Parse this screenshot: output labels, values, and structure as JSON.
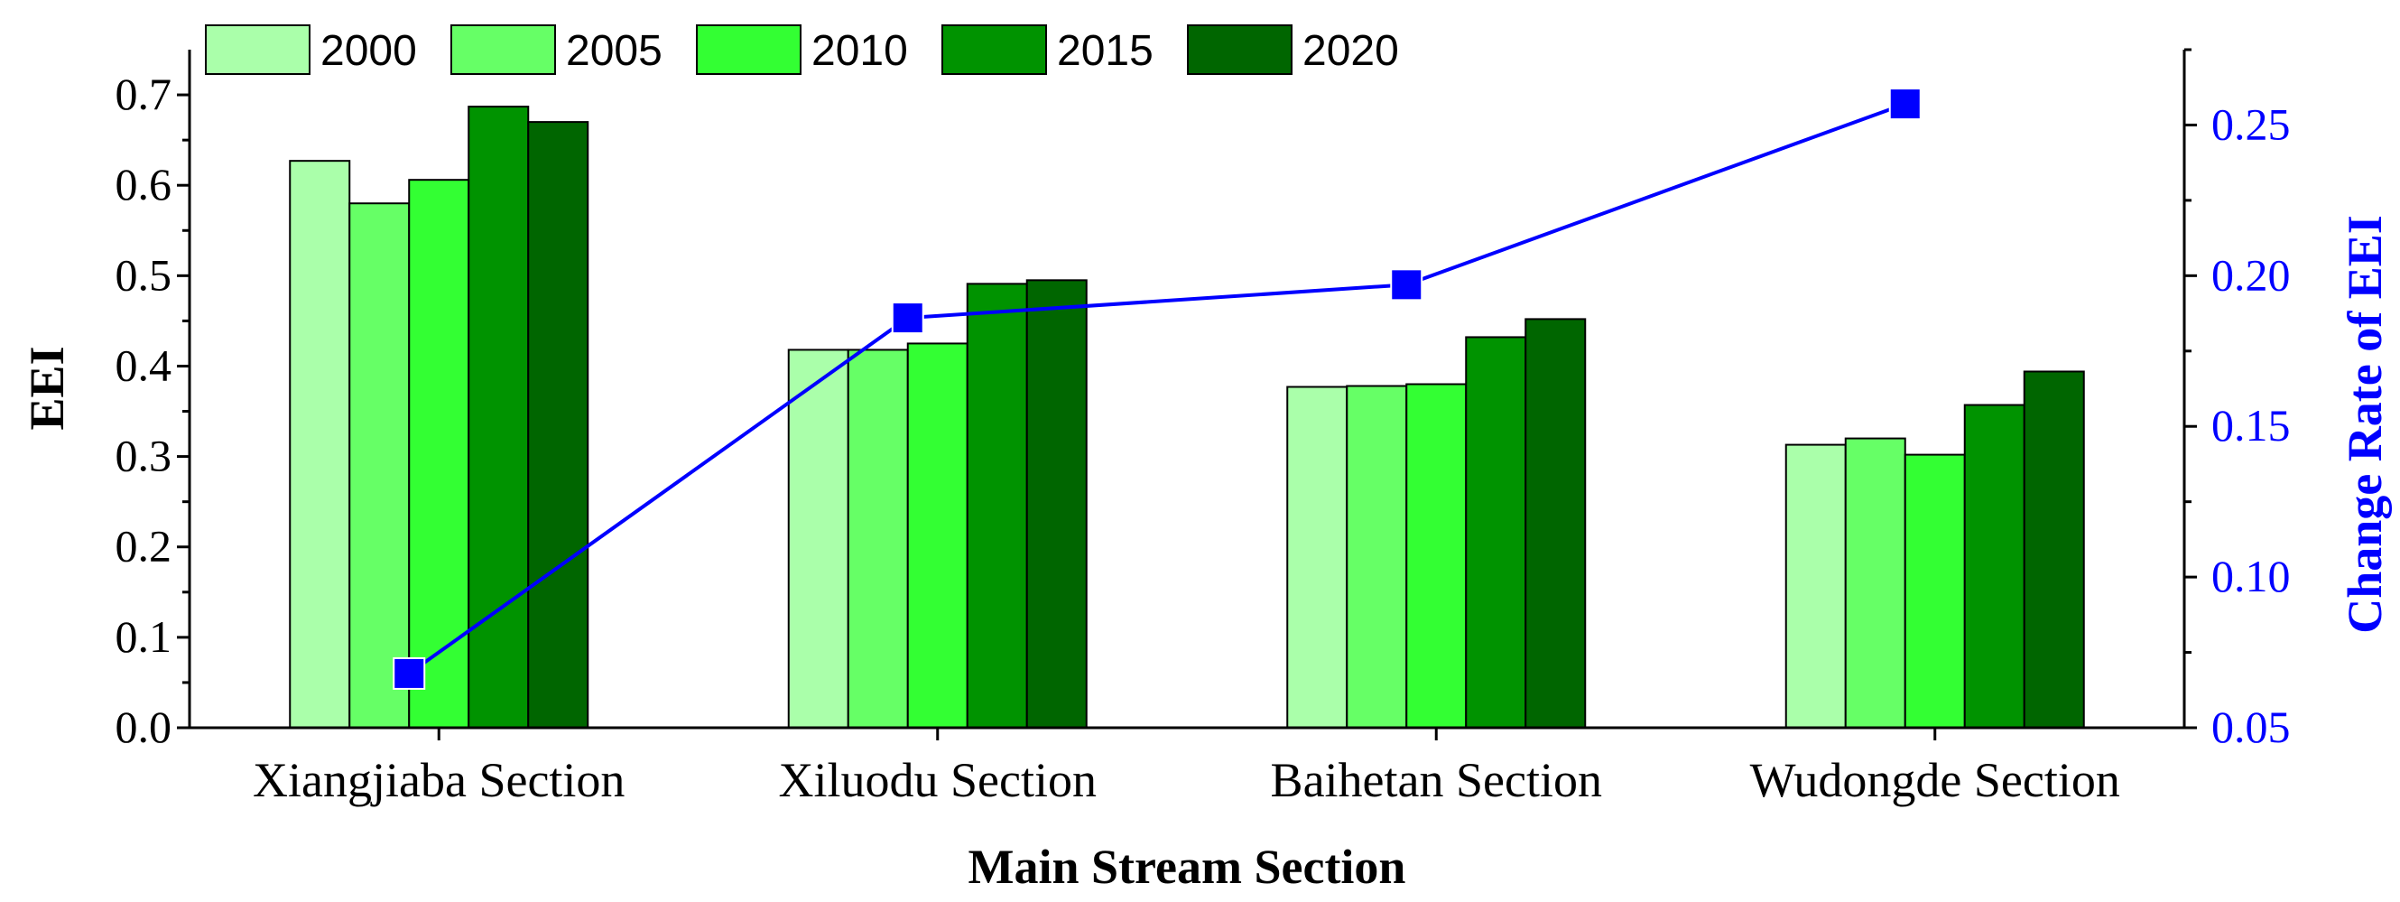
{
  "chart_data": {
    "type": "bar",
    "categories": [
      "Xiangjiaba Section",
      "Xiluodu Section",
      "Baihetan Section",
      "Wudongde Section"
    ],
    "series": [
      {
        "name": "2000",
        "values": [
          0.627,
          0.418,
          0.377,
          0.313
        ],
        "color": "#aaffaa"
      },
      {
        "name": "2005",
        "values": [
          0.58,
          0.418,
          0.378,
          0.32
        ],
        "color": "#66ff66"
      },
      {
        "name": "2010",
        "values": [
          0.606,
          0.425,
          0.38,
          0.302
        ],
        "color": "#33ff33"
      },
      {
        "name": "2015",
        "values": [
          0.687,
          0.491,
          0.432,
          0.357
        ],
        "color": "#009300"
      },
      {
        "name": "2020",
        "values": [
          0.67,
          0.495,
          0.452,
          0.394
        ],
        "color": "#006600"
      }
    ],
    "line_series": {
      "name": "Change Rate of EEI",
      "values": [
        0.068,
        0.186,
        0.197,
        0.257
      ],
      "color": "#0000ff",
      "marker": "square",
      "axis": "right"
    },
    "xlabel": "Main Stream Section",
    "ylabel": "EEI",
    "ylabel_right": "Change Rate of EEI",
    "ylim": [
      0.0,
      0.75
    ],
    "ylim_right": [
      0.05,
      0.275
    ],
    "yticks": [
      "0.0",
      "0.1",
      "0.2",
      "0.3",
      "0.4",
      "0.5",
      "0.6",
      "0.7"
    ],
    "yticks_values": [
      0.0,
      0.1,
      0.2,
      0.3,
      0.4,
      0.5,
      0.6,
      0.7
    ],
    "yticks_right": [
      "0.05",
      "0.10",
      "0.15",
      "0.20",
      "0.25"
    ],
    "yticks_right_values": [
      0.05,
      0.1,
      0.15,
      0.2,
      0.25
    ],
    "grid": false,
    "legend_placement": "top-left"
  }
}
